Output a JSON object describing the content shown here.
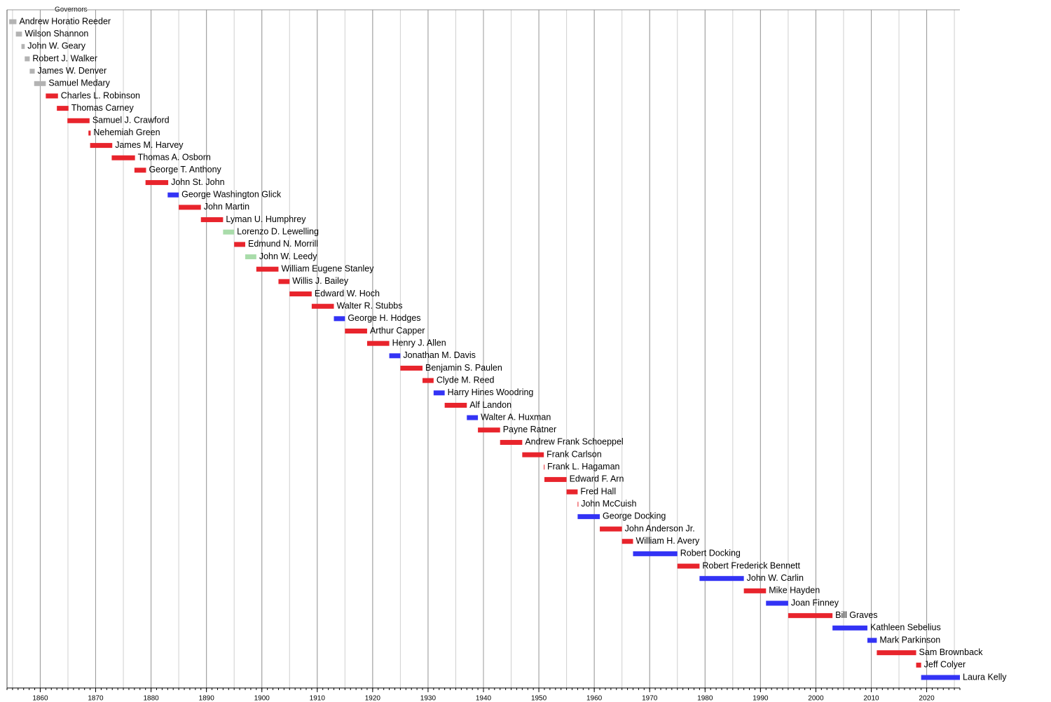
{
  "chart_data": {
    "type": "timeline",
    "title": "Governors",
    "categories": [
      "Andrew Horatio Reeder",
      "Wilson Shannon",
      "John W. Geary",
      "Robert J. Walker",
      "James W. Denver",
      "Samuel Medary",
      "Charles L. Robinson",
      "Thomas Carney",
      "Samuel J. Crawford",
      "Nehemiah Green",
      "James M. Harvey",
      "Thomas A. Osborn",
      "George T. Anthony",
      "John St. John",
      "George Washington Glick",
      "John Martin",
      "Lyman U. Humphrey",
      "Lorenzo D. Lewelling",
      "Edmund N. Morrill",
      "John W. Leedy",
      "William Eugene Stanley",
      "Willis J. Bailey",
      "Edward W. Hoch",
      "Walter R. Stubbs",
      "George H. Hodges",
      "Arthur Capper",
      "Henry J. Allen",
      "Jonathan M. Davis",
      "Benjamin S. Paulen",
      "Clyde M. Reed",
      "Harry Hines Woodring",
      "Alf Landon",
      "Walter A. Huxman",
      "Payne Ratner",
      "Andrew Frank Schoeppel",
      "Frank Carlson",
      "Frank L. Hagaman",
      "Edward F. Arn",
      "Fred Hall",
      "John McCuish",
      "George Docking",
      "John Anderson Jr.",
      "William H. Avery",
      "Robert Docking",
      "Robert Frederick Bennett",
      "John W. Carlin",
      "Mike Hayden",
      "Joan Finney",
      "Bill Graves",
      "Kathleen Sebelius",
      "Mark Parkinson",
      "Sam Brownback",
      "Jeff Colyer",
      "Laura Kelly"
    ],
    "start": [
      1854.4,
      1855.6,
      1856.6,
      1857.2,
      1858.1,
      1858.9,
      1861.0,
      1863.0,
      1864.9,
      1868.7,
      1869.0,
      1872.9,
      1877.0,
      1879.0,
      1883.0,
      1885.0,
      1889.0,
      1893.0,
      1895.0,
      1897.0,
      1899.0,
      1903.0,
      1905.0,
      1909.0,
      1913.0,
      1915.0,
      1919.0,
      1923.0,
      1925.0,
      1929.0,
      1931.0,
      1933.0,
      1937.0,
      1939.0,
      1943.0,
      1947.0,
      1950.9,
      1951.0,
      1955.0,
      1957.0,
      1957.0,
      1961.0,
      1965.0,
      1967.0,
      1975.0,
      1979.0,
      1987.0,
      1991.0,
      1995.0,
      2003.0,
      2009.3,
      2011.0,
      2018.1,
      2019.0
    ],
    "end": [
      1855.7,
      1856.7,
      1857.2,
      1858.1,
      1859.0,
      1861.0,
      1863.2,
      1865.1,
      1868.9,
      1869.1,
      1873.0,
      1877.1,
      1879.1,
      1883.1,
      1885.0,
      1889.0,
      1893.0,
      1895.0,
      1897.0,
      1899.0,
      1903.0,
      1905.0,
      1909.0,
      1913.0,
      1915.0,
      1919.0,
      1923.0,
      1925.0,
      1929.0,
      1931.0,
      1933.0,
      1937.0,
      1939.0,
      1943.0,
      1947.0,
      1950.9,
      1951.0,
      1955.0,
      1957.0,
      1957.1,
      1961.0,
      1965.0,
      1967.0,
      1975.0,
      1979.0,
      1987.0,
      1991.0,
      1995.0,
      2003.0,
      2009.3,
      2011.0,
      2018.1,
      2019.0,
      2026.0
    ],
    "colors": [
      "#b3b3b3",
      "#b3b3b3",
      "#b3b3b3",
      "#b3b3b3",
      "#b3b3b3",
      "#b3b3b3",
      "#e8242c",
      "#e8242c",
      "#e8242c",
      "#e8242c",
      "#e8242c",
      "#e8242c",
      "#e8242c",
      "#e8242c",
      "#3333f5",
      "#e8242c",
      "#e8242c",
      "#a9dcaa",
      "#e8242c",
      "#a9dcaa",
      "#e8242c",
      "#e8242c",
      "#e8242c",
      "#e8242c",
      "#3333f5",
      "#e8242c",
      "#e8242c",
      "#3333f5",
      "#e8242c",
      "#e8242c",
      "#3333f5",
      "#e8242c",
      "#3333f5",
      "#e8242c",
      "#e8242c",
      "#e8242c",
      "#e8242c",
      "#e8242c",
      "#e8242c",
      "#e8242c",
      "#3333f5",
      "#e8242c",
      "#e8242c",
      "#3333f5",
      "#e8242c",
      "#3333f5",
      "#e8242c",
      "#3333f5",
      "#e8242c",
      "#3333f5",
      "#3333f5",
      "#e8242c",
      "#e8242c",
      "#3333f5"
    ],
    "xlim": [
      1854,
      2026
    ],
    "xticks": [
      1860,
      1870,
      1880,
      1890,
      1900,
      1910,
      1920,
      1930,
      1940,
      1950,
      1960,
      1970,
      1980,
      1990,
      2000,
      2010,
      2020
    ],
    "grid": true,
    "minor_grid_step": 5,
    "minor_tick_step": 1
  }
}
